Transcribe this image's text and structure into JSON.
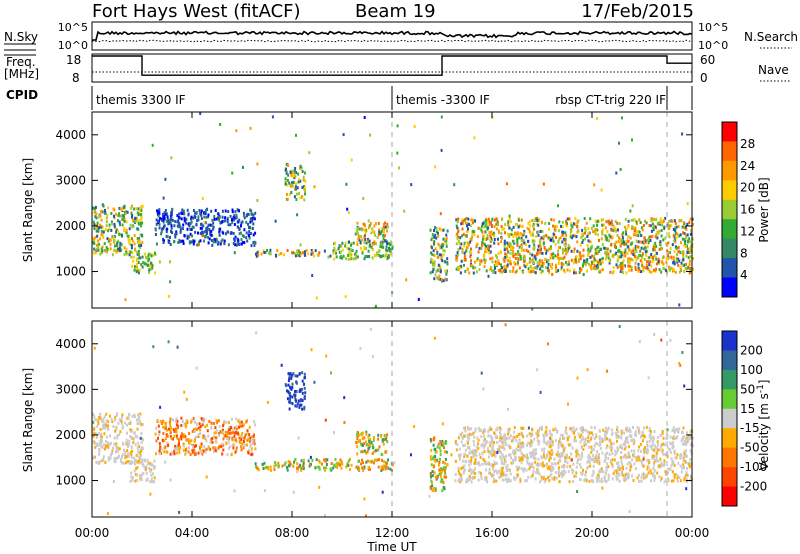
{
  "header": {
    "radar": "Fort Hays West (fitACF)",
    "beam": "Beam 19",
    "date": "17/Feb/2015"
  },
  "top_panels": {
    "nsky_label": "N.Sky",
    "nsky_ticks": [
      "10^5",
      "10^0"
    ],
    "nsearch_label": "N.Search",
    "nsearch_ticks": [
      "10^5",
      "10^0"
    ],
    "freq_label": "Freq.",
    "freq_unit": "[MHz]",
    "freq_ticks": [
      "18",
      "8"
    ],
    "nave_label": "Nave",
    "nave_ticks": [
      "60",
      "0"
    ],
    "cpid_label": "CPID",
    "cpid_segments": [
      {
        "start_hr": 0.0,
        "end_hr": 12.0,
        "label": "themis 3300 IF"
      },
      {
        "start_hr": 12.0,
        "end_hr": 23.0,
        "label": "themis -3300 IF"
      },
      {
        "start_hr": 23.0,
        "end_hr": 24.0,
        "label": "rbsp CT-trig 220 IF"
      }
    ],
    "freq_steps": [
      {
        "start_hr": 0.0,
        "end_hr": 2.0,
        "mhz": 18
      },
      {
        "start_hr": 2.0,
        "end_hr": 14.0,
        "mhz": 10
      },
      {
        "start_hr": 14.0,
        "end_hr": 23.0,
        "mhz": 18
      },
      {
        "start_hr": 23.0,
        "end_hr": 24.0,
        "mhz": 15
      }
    ]
  },
  "chart_data": [
    {
      "type": "heatmap",
      "quantity": "Power",
      "ylabel": "Slant Range [km]",
      "ylim": [
        200,
        4500
      ],
      "yticks": [
        1000,
        2000,
        3000,
        4000
      ],
      "xlim_hr": [
        0,
        24
      ],
      "colorbar_label": "Power [dB]",
      "colorbar_ticks": [
        "28",
        "24",
        "20",
        "16",
        "12",
        "8",
        "4"
      ],
      "colorbar_colors": [
        "#ff0000",
        "#ff6600",
        "#ff9900",
        "#ffcc00",
        "#99cc33",
        "#33aa33",
        "#338866",
        "#2255aa",
        "#0000ff"
      ],
      "bands": [
        {
          "x": [
            0.0,
            2.0
          ],
          "y": [
            1400,
            2500
          ],
          "level": "mixed"
        },
        {
          "x": [
            1.5,
            2.5
          ],
          "y": [
            1000,
            1500
          ],
          "level": "mid"
        },
        {
          "x": [
            2.5,
            6.5
          ],
          "y": [
            1600,
            2400
          ],
          "level": "low"
        },
        {
          "x": [
            6.5,
            9.5
          ],
          "y": [
            1350,
            1500
          ],
          "level": "high"
        },
        {
          "x": [
            7.7,
            8.5
          ],
          "y": [
            2600,
            3400
          ],
          "level": "mixed"
        },
        {
          "x": [
            9.5,
            12.0
          ],
          "y": [
            1300,
            1700
          ],
          "level": "mid"
        },
        {
          "x": [
            10.5,
            11.8
          ],
          "y": [
            1600,
            2100
          ],
          "level": "high"
        },
        {
          "x": [
            13.5,
            14.2
          ],
          "y": [
            800,
            2000
          ],
          "level": "mixed"
        },
        {
          "x": [
            14.5,
            24.0
          ],
          "y": [
            1000,
            2200
          ],
          "level": "high"
        }
      ]
    },
    {
      "type": "heatmap",
      "quantity": "Velocity",
      "ylabel": "Slant Range [km]",
      "ylim": [
        200,
        4500
      ],
      "yticks": [
        1000,
        2000,
        3000,
        4000
      ],
      "xlim_hr": [
        0,
        24
      ],
      "colorbar_label": "Velocity [m s^-1]",
      "colorbar_ticks": [
        "200",
        "100",
        "50",
        "15",
        "-15",
        "-50",
        "-100",
        "-200"
      ],
      "colorbar_colors": [
        "#1a33cc",
        "#336699",
        "#339966",
        "#66cc33",
        "#cccccc",
        "#ffaa00",
        "#ff7700",
        "#ff4400",
        "#ff0000"
      ],
      "bands": [
        {
          "x": [
            0.0,
            2.0
          ],
          "y": [
            1400,
            2500
          ],
          "level": "ground"
        },
        {
          "x": [
            1.5,
            2.5
          ],
          "y": [
            1000,
            1500
          ],
          "level": "ground"
        },
        {
          "x": [
            2.5,
            6.5
          ],
          "y": [
            1600,
            2400
          ],
          "level": "neg"
        },
        {
          "x": [
            6.5,
            12.0
          ],
          "y": [
            1250,
            1500
          ],
          "level": "pos"
        },
        {
          "x": [
            7.7,
            8.5
          ],
          "y": [
            2600,
            3400
          ],
          "level": "fast"
        },
        {
          "x": [
            10.5,
            11.8
          ],
          "y": [
            1600,
            2100
          ],
          "level": "pos"
        },
        {
          "x": [
            13.5,
            14.2
          ],
          "y": [
            800,
            2000
          ],
          "level": "pos"
        },
        {
          "x": [
            14.5,
            24.0
          ],
          "y": [
            1000,
            2200
          ],
          "level": "ground"
        }
      ]
    }
  ],
  "xaxis": {
    "label": "Time UT",
    "ticks": [
      "00:00",
      "04:00",
      "08:00",
      "12:00",
      "16:00",
      "20:00",
      "00:00"
    ]
  }
}
